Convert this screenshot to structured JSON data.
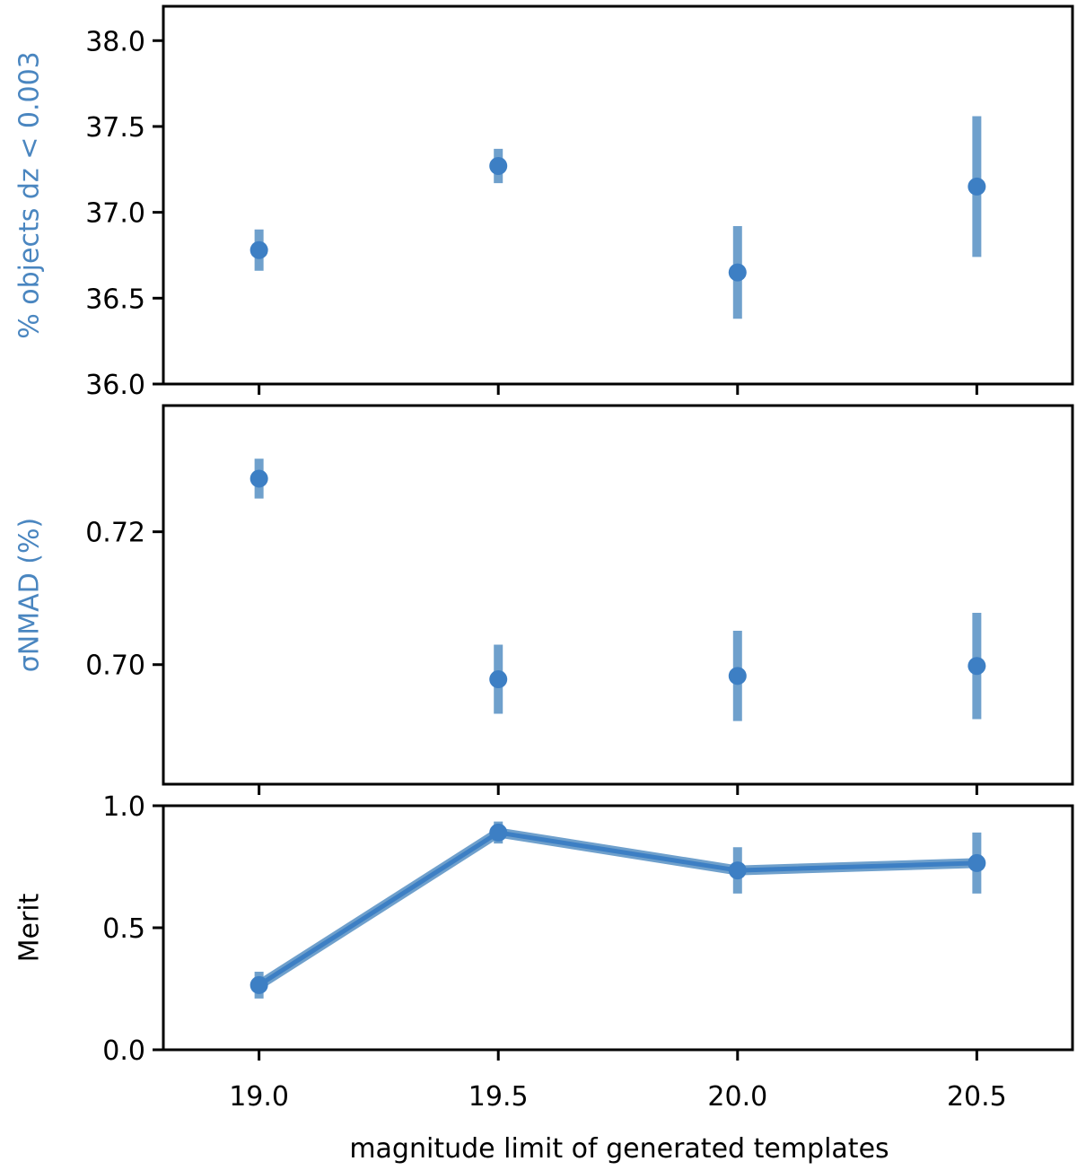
{
  "colors": {
    "accent": "#3d7fc4",
    "errorbar": "#6fa0cc",
    "ylabel_blue": "#4a86c0",
    "ylabel_black": "#000000"
  },
  "figure": {
    "xlabel": "magnitude limit of generated templates"
  },
  "chart_data": [
    {
      "type": "scatter",
      "ylabel": "% objects dz < 0.003",
      "ylabel_color": "blue",
      "x": [
        19.0,
        19.5,
        20.0,
        20.5
      ],
      "xlim": [
        18.8,
        20.7
      ],
      "ylim": [
        36.0,
        38.2
      ],
      "yticks": [
        36.0,
        36.5,
        37.0,
        37.5,
        38.0
      ],
      "ytick_labels": [
        "36.0",
        "36.5",
        "37.0",
        "37.5",
        "38.0"
      ],
      "series": [
        {
          "name": "% objects dz < 0.003",
          "values": [
            36.78,
            37.27,
            36.65,
            37.15
          ],
          "err": [
            0.12,
            0.1,
            0.27,
            0.41
          ],
          "line": false
        }
      ]
    },
    {
      "type": "scatter",
      "ylabel": "σNMAD (%)",
      "ylabel_color": "blue",
      "x": [
        19.0,
        19.5,
        20.0,
        20.5
      ],
      "xlim": [
        18.8,
        20.7
      ],
      "ylim": [
        0.682,
        0.739
      ],
      "yticks": [
        0.7,
        0.72
      ],
      "ytick_labels": [
        "0.70",
        "0.72"
      ],
      "series": [
        {
          "name": "σNMAD",
          "values": [
            0.728,
            0.6978,
            0.6983,
            0.6998
          ],
          "err": [
            0.003,
            0.0052,
            0.0068,
            0.008
          ],
          "line": false
        }
      ]
    },
    {
      "type": "line",
      "ylabel": "Merit",
      "ylabel_color": "black",
      "x": [
        19.0,
        19.5,
        20.0,
        20.5
      ],
      "xlim": [
        18.8,
        20.7
      ],
      "ylim": [
        0.0,
        1.0
      ],
      "yticks": [
        0.0,
        0.5,
        1.0
      ],
      "ytick_labels": [
        "0.0",
        "0.5",
        "1.0"
      ],
      "xticks": [
        19.0,
        19.5,
        20.0,
        20.5
      ],
      "xtick_labels": [
        "19.0",
        "19.5",
        "20.0",
        "20.5"
      ],
      "series": [
        {
          "name": "Merit",
          "values": [
            0.265,
            0.89,
            0.735,
            0.765
          ],
          "err": [
            0.055,
            0.045,
            0.095,
            0.125
          ],
          "line": true
        }
      ]
    }
  ]
}
